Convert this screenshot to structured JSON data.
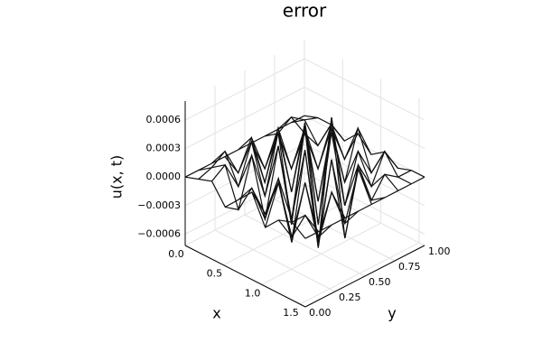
{
  "chart_data": {
    "type": "surface",
    "title": "error",
    "xlabel": "x",
    "ylabel": "y",
    "zlabel": "u(x, t)",
    "color": "#111111",
    "grid": true,
    "x": [
      0,
      0.1745,
      0.349,
      0.5236,
      0.6981,
      0.8727,
      1.0472,
      1.2217,
      1.3963,
      1.5708
    ],
    "y": [
      0,
      0.111,
      0.222,
      0.333,
      0.444,
      0.556,
      0.667,
      0.778,
      0.889,
      1
    ],
    "z": [
      [
        0,
        5e-05,
        0.0001,
        -0.0001,
        5e-05,
        0.0002,
        -0.0001,
        5e-05,
        0.0001,
        0
      ],
      [
        0,
        0.0001,
        0.0002,
        -0.0002,
        0.0001,
        -0.0001,
        0.0003,
        -0.0002,
        0.0001,
        0
      ],
      [
        0,
        0.0002,
        -0.0001,
        0.0003,
        -0.0003,
        0.0002,
        -0.0004,
        0.0003,
        -0.0002,
        0
      ],
      [
        0,
        -0.0001,
        0.0003,
        -0.0002,
        0.0004,
        -0.0003,
        0.0005,
        -0.0004,
        0.0002,
        0
      ],
      [
        0,
        0.0002,
        -0.0002,
        0.0004,
        -0.0005,
        0.0006,
        -0.0006,
        0.0004,
        -0.0002,
        0
      ],
      [
        0,
        -0.0002,
        0.0003,
        -0.0003,
        0.0005,
        -0.0005,
        0.0007,
        -0.0005,
        0.0003,
        0
      ],
      [
        0,
        0.0001,
        -0.0002,
        0.0003,
        -0.0004,
        0.0004,
        -0.0003,
        0.0002,
        -0.0001,
        0
      ],
      [
        0,
        0.0002,
        0.0001,
        -0.0002,
        0.0003,
        -0.0002,
        0.0002,
        -0.0001,
        0.0001,
        0
      ],
      [
        0,
        0.0001,
        -0.0001,
        0.0002,
        -0.0001,
        0.0003,
        -0.0001,
        0.0002,
        0,
        0
      ],
      [
        0,
        5e-05,
        5e-05,
        -5e-05,
        0.0001,
        -5e-05,
        5e-05,
        -5e-05,
        0,
        0
      ]
    ],
    "xlim": [
      0,
      1.5708
    ],
    "ylim": [
      0,
      1
    ],
    "zlim": [
      -0.00072,
      0.0008
    ],
    "xticks": [
      {
        "value": 0,
        "label": "0.0"
      },
      {
        "value": 0.5,
        "label": "0.5"
      },
      {
        "value": 1,
        "label": "1.0"
      },
      {
        "value": 1.5,
        "label": "1.5"
      }
    ],
    "yticks": [
      {
        "value": 0,
        "label": "0.00"
      },
      {
        "value": 0.25,
        "label": "0.25"
      },
      {
        "value": 0.5,
        "label": "0.50"
      },
      {
        "value": 0.75,
        "label": "0.75"
      },
      {
        "value": 1,
        "label": "1.00"
      }
    ],
    "zticks": [
      {
        "value": -0.0006,
        "label": "−0.0006"
      },
      {
        "value": -0.0003,
        "label": "−0.0003"
      },
      {
        "value": 0,
        "label": "0.0000"
      },
      {
        "value": 0.0003,
        "label": "0.0003"
      },
      {
        "value": 0.0006,
        "label": "0.0006"
      }
    ]
  }
}
